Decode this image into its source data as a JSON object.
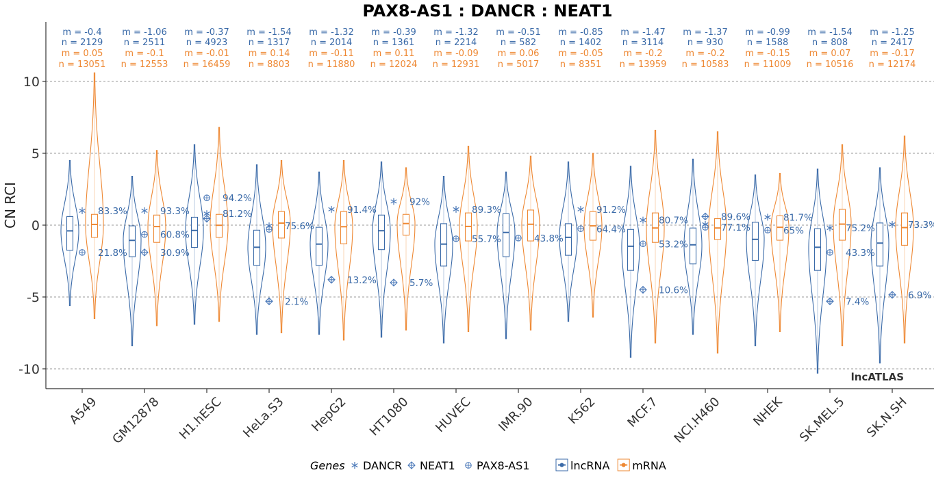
{
  "chart_data": {
    "type": "violin",
    "title": "PAX8-AS1 : DANCR : NEAT1",
    "ylabel": "CN RCI",
    "xlabel": "",
    "ylim": [
      -11.5,
      14.0
    ],
    "yticks": [
      10,
      5,
      0,
      -5,
      -10
    ],
    "grid": true,
    "watermark": "lncATLAS",
    "colors": {
      "lncRNA": "#3a6aa8",
      "mRNA": "#ee8833",
      "gene_marker": "#4a78b8"
    },
    "legend": {
      "title": "Genes",
      "genes": [
        {
          "label": "DANCR",
          "marker": "asterisk-icon"
        },
        {
          "label": "NEAT1",
          "marker": "diamond-plus-icon"
        },
        {
          "label": "PAX8-AS1",
          "marker": "circle-plus-icon"
        }
      ],
      "types": [
        "lncRNA",
        "mRNA"
      ]
    },
    "cells": [
      {
        "name": "A549",
        "lnc": {
          "m": "m = -0.4",
          "n": "n = 2129",
          "med": -0.4,
          "q1": -1.75,
          "q3": 0.6,
          "min": -5.6,
          "max": 4.5
        },
        "mrna": {
          "m": "m = 0.05",
          "n": "n = 13051",
          "med": 0.05,
          "q1": -0.85,
          "q3": 0.75,
          "min": -6.5,
          "max": 10.6
        },
        "genes": [
          {
            "gene": "DANCR",
            "y": 1.0,
            "pct": "83.3%"
          },
          {
            "gene": "PAX8-AS1",
            "y": -1.9,
            "pct": "21.8%"
          }
        ]
      },
      {
        "name": "GM12878",
        "lnc": {
          "m": "m = -1.06",
          "n": "n = 2511",
          "med": -1.06,
          "q1": -2.2,
          "q3": -0.05,
          "min": -8.4,
          "max": 3.4
        },
        "mrna": {
          "m": "m = -0.1",
          "n": "n = 12553",
          "med": -0.1,
          "q1": -1.2,
          "q3": 0.7,
          "min": -7.0,
          "max": 5.2
        },
        "genes": [
          {
            "gene": "DANCR",
            "y": 1.0,
            "pct": "93.3%"
          },
          {
            "gene": "PAX8-AS1",
            "y": -0.65,
            "pct": "60.8%"
          },
          {
            "gene": "NEAT1",
            "y": -1.9,
            "pct": "30.9%"
          }
        ]
      },
      {
        "name": "H1.hESC",
        "lnc": {
          "m": "m = -0.37",
          "n": "n = 4923",
          "med": -0.37,
          "q1": -1.55,
          "q3": 0.55,
          "min": -6.9,
          "max": 5.6
        },
        "mrna": {
          "m": "m = -0.01",
          "n": "n = 16459",
          "med": -0.01,
          "q1": -0.85,
          "q3": 0.75,
          "min": -6.7,
          "max": 6.8
        },
        "genes": [
          {
            "gene": "PAX8-AS1",
            "y": 1.9,
            "pct": "94.2%"
          },
          {
            "gene": "DANCR",
            "y": 0.8,
            "pct": "81.2%"
          },
          {
            "gene": "NEAT1",
            "y": 0.45,
            "pct": ""
          }
        ]
      },
      {
        "name": "HeLa.S3",
        "lnc": {
          "m": "m = -1.54",
          "n": "n = 1317",
          "med": -1.54,
          "q1": -2.8,
          "q3": -0.35,
          "min": -7.6,
          "max": 4.2
        },
        "mrna": {
          "m": "m = 0.14",
          "n": "n = 8803",
          "med": 0.14,
          "q1": -0.9,
          "q3": 0.95,
          "min": -7.5,
          "max": 4.5
        },
        "genes": [
          {
            "gene": "DANCR",
            "y": -0.05,
            "pct": "75.6%"
          },
          {
            "gene": "PAX8-AS1",
            "y": -0.3,
            "pct": ""
          },
          {
            "gene": "NEAT1",
            "y": -5.3,
            "pct": "2.1%"
          }
        ]
      },
      {
        "name": "HepG2",
        "lnc": {
          "m": "m = -1.32",
          "n": "n = 2014",
          "med": -1.32,
          "q1": -2.8,
          "q3": -0.15,
          "min": -7.6,
          "max": 3.7
        },
        "mrna": {
          "m": "m = -0.11",
          "n": "n = 11880",
          "med": -0.11,
          "q1": -1.3,
          "q3": 0.95,
          "min": -8.0,
          "max": 4.5
        },
        "genes": [
          {
            "gene": "DANCR",
            "y": 1.1,
            "pct": "91.4%"
          },
          {
            "gene": "NEAT1",
            "y": -3.8,
            "pct": "13.2%"
          }
        ]
      },
      {
        "name": "HT1080",
        "lnc": {
          "m": "m = -0.39",
          "n": "n = 1361",
          "med": -0.39,
          "q1": -1.7,
          "q3": 0.7,
          "min": -7.8,
          "max": 4.4
        },
        "mrna": {
          "m": "m = 0.11",
          "n": "n = 12024",
          "med": 0.11,
          "q1": -0.7,
          "q3": 0.75,
          "min": -7.3,
          "max": 4.0
        },
        "genes": [
          {
            "gene": "DANCR",
            "y": 1.65,
            "pct": "92%"
          },
          {
            "gene": "NEAT1",
            "y": -4.0,
            "pct": "5.7%"
          }
        ]
      },
      {
        "name": "HUVEC",
        "lnc": {
          "m": "m = -1.32",
          "n": "n = 2214",
          "med": -1.32,
          "q1": -2.85,
          "q3": 0.1,
          "min": -8.2,
          "max": 3.4
        },
        "mrna": {
          "m": "m = -0.09",
          "n": "n = 12931",
          "med": -0.09,
          "q1": -1.1,
          "q3": 0.85,
          "min": -7.4,
          "max": 5.5
        },
        "genes": [
          {
            "gene": "DANCR",
            "y": 1.1,
            "pct": "89.3%"
          },
          {
            "gene": "PAX8-AS1",
            "y": -0.95,
            "pct": "55.7%"
          }
        ]
      },
      {
        "name": "IMR.90",
        "lnc": {
          "m": "m = -0.51",
          "n": "n = 582",
          "med": -0.51,
          "q1": -2.2,
          "q3": 0.8,
          "min": -7.9,
          "max": 3.7
        },
        "mrna": {
          "m": "m = 0.06",
          "n": "n = 5017",
          "med": 0.06,
          "q1": -1.1,
          "q3": 1.05,
          "min": -7.3,
          "max": 4.8
        },
        "genes": [
          {
            "gene": "PAX8-AS1",
            "y": -0.9,
            "pct": "43.8%"
          }
        ]
      },
      {
        "name": "K562",
        "lnc": {
          "m": "m = -0.85",
          "n": "n = 1402",
          "med": -0.85,
          "q1": -2.1,
          "q3": 0.1,
          "min": -6.7,
          "max": 4.4
        },
        "mrna": {
          "m": "m = -0.05",
          "n": "n = 8351",
          "med": -0.05,
          "q1": -1.05,
          "q3": 0.95,
          "min": -6.4,
          "max": 5.0
        },
        "genes": [
          {
            "gene": "DANCR",
            "y": 1.1,
            "pct": "91.2%"
          },
          {
            "gene": "PAX8-AS1",
            "y": -0.25,
            "pct": "64.4%"
          }
        ]
      },
      {
        "name": "MCF.7",
        "lnc": {
          "m": "m = -1.47",
          "n": "n = 3114",
          "med": -1.47,
          "q1": -3.15,
          "q3": -0.3,
          "min": -9.2,
          "max": 4.1
        },
        "mrna": {
          "m": "m = -0.2",
          "n": "n = 13959",
          "med": -0.2,
          "q1": -1.2,
          "q3": 0.85,
          "min": -8.2,
          "max": 6.6
        },
        "genes": [
          {
            "gene": "DANCR",
            "y": 0.35,
            "pct": "80.7%"
          },
          {
            "gene": "PAX8-AS1",
            "y": -1.3,
            "pct": "53.2%"
          },
          {
            "gene": "NEAT1",
            "y": -4.5,
            "pct": "10.6%"
          }
        ]
      },
      {
        "name": "NCI.H460",
        "lnc": {
          "m": "m = -1.37",
          "n": "n = 930",
          "med": -1.37,
          "q1": -2.7,
          "q3": -0.2,
          "min": -7.6,
          "max": 4.6
        },
        "mrna": {
          "m": "m = -0.2",
          "n": "n = 10583",
          "med": -0.2,
          "q1": -1.0,
          "q3": 0.45,
          "min": -8.9,
          "max": 6.5
        },
        "genes": [
          {
            "gene": "NEAT1",
            "y": 0.6,
            "pct": "89.6%"
          },
          {
            "gene": "DANCR",
            "y": 0.05,
            "pct": ""
          },
          {
            "gene": "PAX8-AS1",
            "y": -0.15,
            "pct": "77.1%"
          }
        ]
      },
      {
        "name": "NHEK",
        "lnc": {
          "m": "m = -0.99",
          "n": "n = 1588",
          "med": -0.99,
          "q1": -2.45,
          "q3": 0.2,
          "min": -8.4,
          "max": 3.5
        },
        "mrna": {
          "m": "m = -0.15",
          "n": "n = 11009",
          "med": -0.15,
          "q1": -1.05,
          "q3": 0.65,
          "min": -7.4,
          "max": 3.6
        },
        "genes": [
          {
            "gene": "DANCR",
            "y": 0.55,
            "pct": "81.7%"
          },
          {
            "gene": "PAX8-AS1",
            "y": -0.35,
            "pct": "65%"
          }
        ]
      },
      {
        "name": "SK.MEL.5",
        "lnc": {
          "m": "m = -1.54",
          "n": "n = 808",
          "med": -1.54,
          "q1": -3.15,
          "q3": -0.25,
          "min": -10.3,
          "max": 3.9
        },
        "mrna": {
          "m": "m = 0.07",
          "n": "n = 10516",
          "med": 0.07,
          "q1": -1.05,
          "q3": 1.1,
          "min": -8.4,
          "max": 5.6
        },
        "genes": [
          {
            "gene": "DANCR",
            "y": -0.2,
            "pct": "75.2%"
          },
          {
            "gene": "PAX8-AS1",
            "y": -1.9,
            "pct": "43.3%"
          },
          {
            "gene": "NEAT1",
            "y": -5.3,
            "pct": "7.4%"
          }
        ]
      },
      {
        "name": "SK.N.SH",
        "lnc": {
          "m": "m = -1.25",
          "n": "n = 2417",
          "med": -1.25,
          "q1": -2.85,
          "q3": 0.15,
          "min": -9.6,
          "max": 4.0
        },
        "mrna": {
          "m": "m = -0.17",
          "n": "n = 12174",
          "med": -0.17,
          "q1": -1.4,
          "q3": 0.85,
          "min": -8.2,
          "max": 6.2
        },
        "genes": [
          {
            "gene": "DANCR",
            "y": 0.05,
            "pct": "73.3%"
          },
          {
            "gene": "NEAT1",
            "y": -4.85,
            "pct": "6.9%"
          }
        ]
      }
    ]
  }
}
